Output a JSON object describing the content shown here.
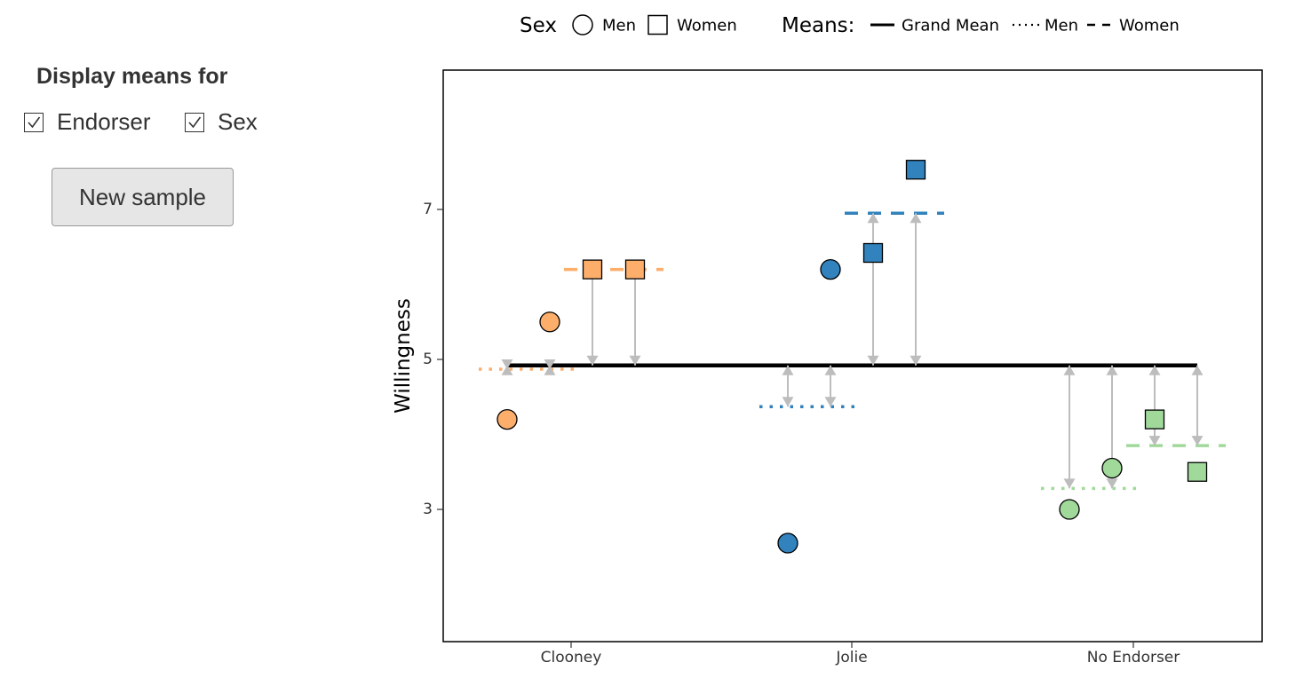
{
  "sidebar": {
    "title": "Display means for",
    "checkboxes": [
      {
        "label": "Endorser",
        "checked": true
      },
      {
        "label": "Sex",
        "checked": true
      }
    ],
    "button_label": "New sample"
  },
  "chart_data": {
    "type": "scatter",
    "ylabel": "Willingness",
    "xlabel": "",
    "categories": [
      "Clooney",
      "Jolie",
      "No Endorser"
    ],
    "yticks": [
      3,
      5,
      7
    ],
    "ylim": [
      1.2,
      8.8
    ],
    "grid": false,
    "legend": {
      "placement": "top",
      "sex_title": "Sex",
      "sex_items": [
        {
          "label": "Men",
          "shape": "circle"
        },
        {
          "label": "Women",
          "shape": "square"
        }
      ],
      "means_title": "Means:",
      "means_items": [
        {
          "label": "Grand Mean",
          "linestyle": "solid"
        },
        {
          "label": "Men",
          "linestyle": "dotted"
        },
        {
          "label": "Women",
          "linestyle": "dashed"
        }
      ]
    },
    "colors": {
      "Clooney": "#fdae6b",
      "Jolie": "#3182bd",
      "No Endorser": "#a1d99b",
      "grand_mean": "#000000",
      "arrow": "#bdbdbd"
    },
    "grand_mean": 4.92,
    "group_means": [
      {
        "endorser": "Clooney",
        "men": 4.87,
        "women": 6.2
      },
      {
        "endorser": "Jolie",
        "men": 4.37,
        "women": 6.95
      },
      {
        "endorser": "No Endorser",
        "men": 3.28,
        "women": 3.85
      }
    ],
    "points": [
      {
        "endorser": "Clooney",
        "sex": "Men",
        "y": 4.2
      },
      {
        "endorser": "Clooney",
        "sex": "Men",
        "y": 5.5
      },
      {
        "endorser": "Clooney",
        "sex": "Women",
        "y": 6.2
      },
      {
        "endorser": "Clooney",
        "sex": "Women",
        "y": 6.2
      },
      {
        "endorser": "Jolie",
        "sex": "Men",
        "y": 2.55
      },
      {
        "endorser": "Jolie",
        "sex": "Men",
        "y": 6.2
      },
      {
        "endorser": "Jolie",
        "sex": "Women",
        "y": 6.42
      },
      {
        "endorser": "Jolie",
        "sex": "Women",
        "y": 7.53
      },
      {
        "endorser": "No Endorser",
        "sex": "Men",
        "y": 3.0
      },
      {
        "endorser": "No Endorser",
        "sex": "Men",
        "y": 3.55
      },
      {
        "endorser": "No Endorser",
        "sex": "Women",
        "y": 4.2
      },
      {
        "endorser": "No Endorser",
        "sex": "Women",
        "y": 3.5
      }
    ]
  }
}
